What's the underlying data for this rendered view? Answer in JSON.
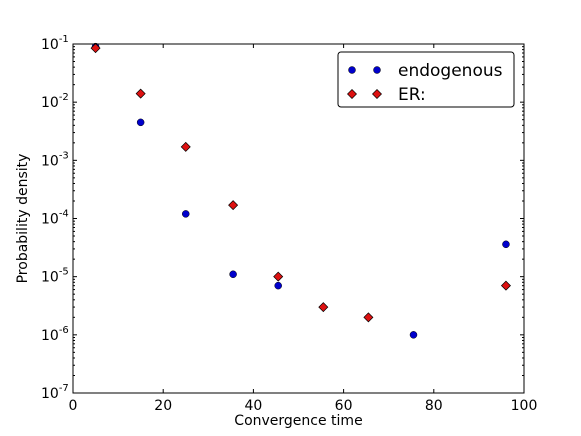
{
  "chart_data": {
    "type": "scatter",
    "title": "",
    "xlabel": "Convergence time",
    "ylabel": "Probability density",
    "xlim": [
      0,
      100
    ],
    "ylim": [
      1e-07,
      0.1
    ],
    "yscale": "log",
    "grid": false,
    "legend_position": "top-right",
    "x_ticks": [
      0,
      20,
      40,
      60,
      80,
      100
    ],
    "x_tick_labels": [
      "0",
      "20",
      "40",
      "60",
      "80",
      "100"
    ],
    "y_ticks": [
      1e-07,
      1e-06,
      1e-05,
      0.0001,
      0.001,
      0.01,
      0.1
    ],
    "y_tick_labels": [
      {
        "base": "10",
        "exp": "-7"
      },
      {
        "base": "10",
        "exp": "-6"
      },
      {
        "base": "10",
        "exp": "-5"
      },
      {
        "base": "10",
        "exp": "-4"
      },
      {
        "base": "10",
        "exp": "-3"
      },
      {
        "base": "10",
        "exp": "-2"
      },
      {
        "base": "10",
        "exp": "-1"
      }
    ],
    "series": [
      {
        "name": "endogenous",
        "marker": "circle",
        "color": "#0000cc",
        "x": [
          5,
          15,
          25,
          35.5,
          45.5,
          75.5,
          96
        ],
        "y": [
          0.09,
          0.0045,
          0.00012,
          1.1e-05,
          7e-06,
          1e-06,
          3.6e-05
        ]
      },
      {
        "name": "ER:",
        "marker": "diamond",
        "color": "#dd1111",
        "x": [
          5,
          15,
          25,
          35.5,
          45.5,
          55.5,
          65.5,
          96
        ],
        "y": [
          0.085,
          0.014,
          0.0017,
          0.00017,
          1e-05,
          3e-06,
          2e-06,
          7e-06
        ]
      }
    ]
  }
}
